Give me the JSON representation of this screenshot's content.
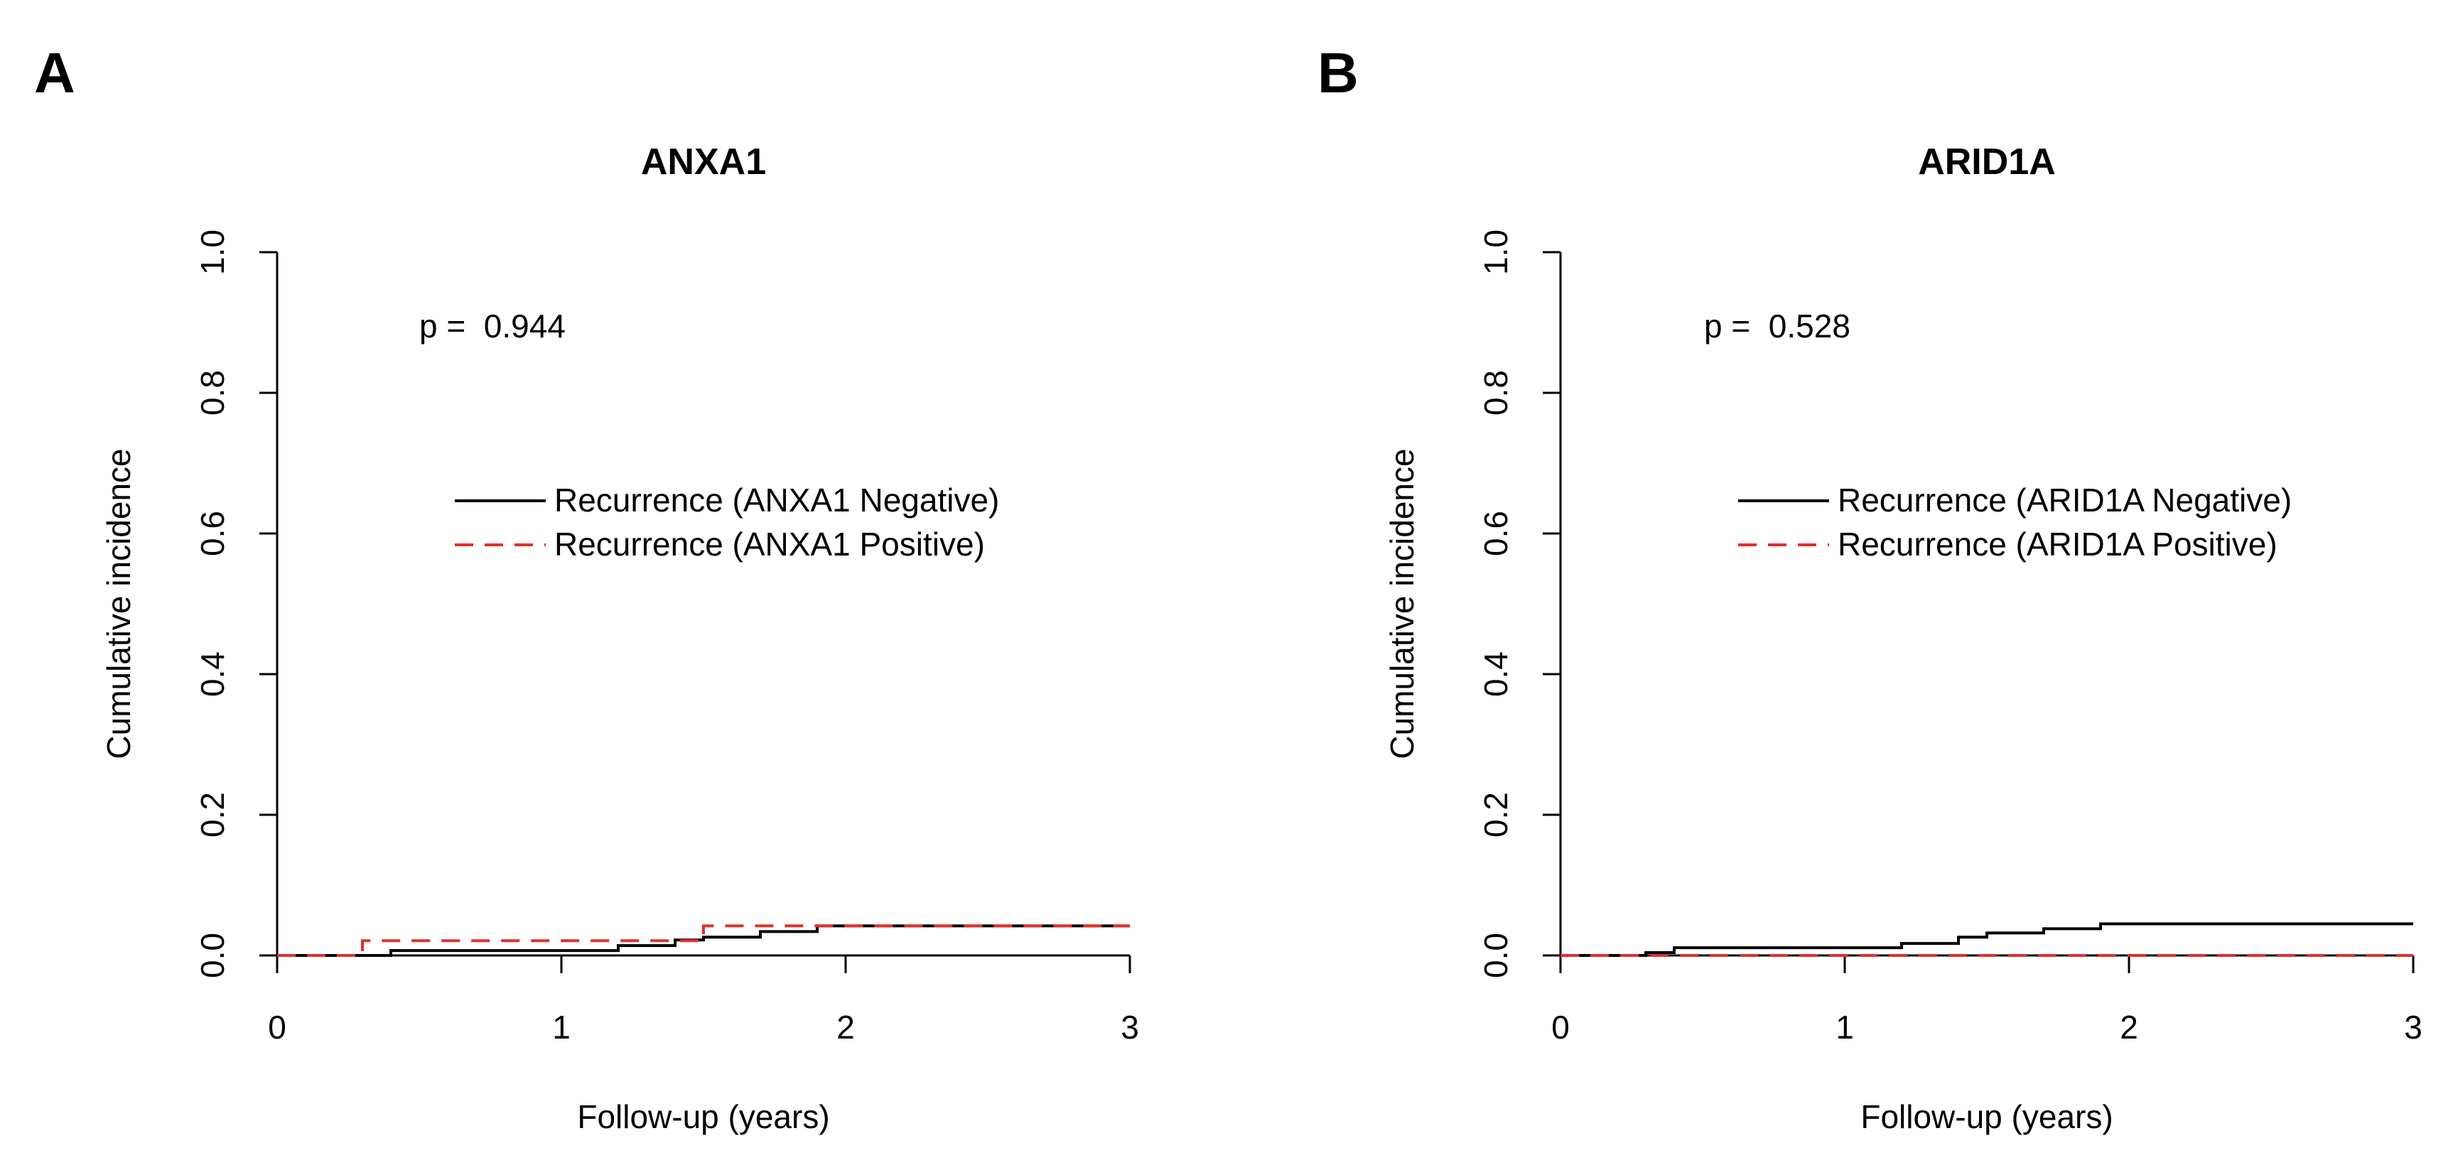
{
  "chart_data": [
    {
      "type": "line",
      "panel": "A",
      "title": "ANXA1",
      "xlabel": "Follow-up (years)",
      "ylabel": "Cumulative incidence",
      "xlim": [
        0,
        3
      ],
      "ylim": [
        0,
        1
      ],
      "x_ticks": [
        "0",
        "1",
        "2",
        "3"
      ],
      "y_ticks": [
        "0.0",
        "0.2",
        "0.4",
        "0.6",
        "0.8",
        "1.0"
      ],
      "p_text": "p =  0.944",
      "legend": [
        "Recurrence (ANXA1 Negative)",
        "Recurrence (ANXA1 Positive)"
      ],
      "series": [
        {
          "name": "Recurrence (ANXA1 Negative)",
          "color": "#000000",
          "style": "solid",
          "steps": [
            [
              0,
              0
            ],
            [
              0.4,
              0.007
            ],
            [
              1.2,
              0.014
            ],
            [
              1.4,
              0.022
            ],
            [
              1.5,
              0.026
            ],
            [
              1.7,
              0.034
            ],
            [
              1.9,
              0.042
            ],
            [
              3.0,
              0.042
            ]
          ]
        },
        {
          "name": "Recurrence (ANXA1 Positive)",
          "color": "#e0302a",
          "style": "dashed",
          "steps": [
            [
              0,
              0
            ],
            [
              0.3,
              0.021
            ],
            [
              1.5,
              0.042
            ],
            [
              3.0,
              0.042
            ]
          ]
        }
      ]
    },
    {
      "type": "line",
      "panel": "B",
      "title": "ARID1A",
      "xlabel": "Follow-up (years)",
      "ylabel": "Cumulative incidence",
      "xlim": [
        0,
        3
      ],
      "ylim": [
        0,
        1
      ],
      "x_ticks": [
        "0",
        "1",
        "2",
        "3"
      ],
      "y_ticks": [
        "0.0",
        "0.2",
        "0.4",
        "0.6",
        "0.8",
        "1.0"
      ],
      "p_text": "p =  0.528",
      "legend": [
        "Recurrence (ARID1A Negative)",
        "Recurrence (ARID1A Positive)"
      ],
      "series": [
        {
          "name": "Recurrence (ARID1A Negative)",
          "color": "#000000",
          "style": "solid",
          "steps": [
            [
              0,
              0
            ],
            [
              0.3,
              0.004
            ],
            [
              0.4,
              0.011
            ],
            [
              1.2,
              0.017
            ],
            [
              1.4,
              0.026
            ],
            [
              1.5,
              0.032
            ],
            [
              1.7,
              0.038
            ],
            [
              1.9,
              0.045
            ],
            [
              3.0,
              0.045
            ]
          ]
        },
        {
          "name": "Recurrence (ARID1A Positive)",
          "color": "#e0302a",
          "style": "dashed",
          "steps": [
            [
              0,
              0
            ],
            [
              3.0,
              0
            ]
          ]
        }
      ]
    }
  ]
}
